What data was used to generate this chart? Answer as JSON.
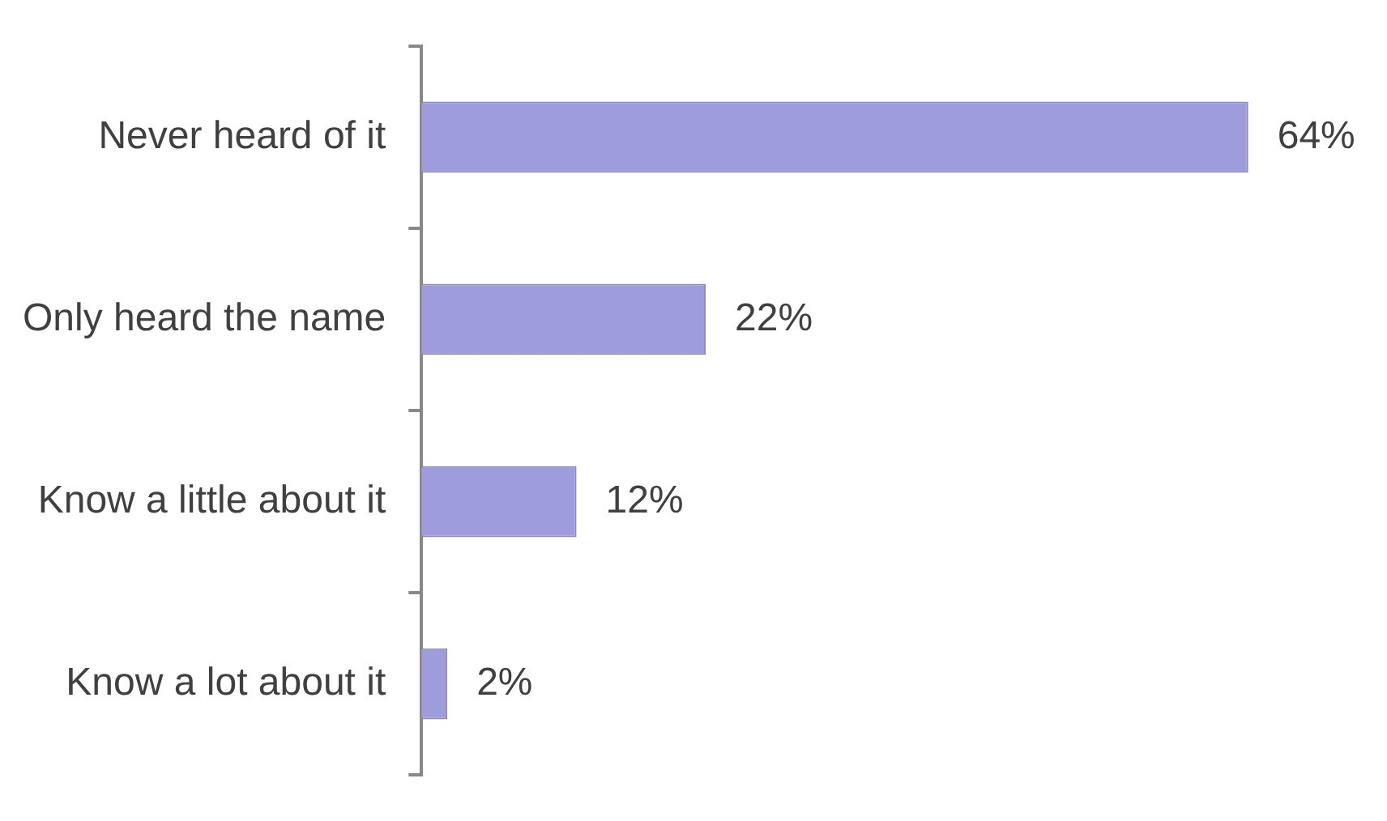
{
  "chart_data": {
    "type": "bar",
    "orientation": "horizontal",
    "categories": [
      "Never heard of it",
      "Only heard the name",
      "Know a little about it",
      "Know a lot about it"
    ],
    "values": [
      64,
      22,
      12,
      2
    ],
    "value_labels": [
      "64%",
      "22%",
      "12%",
      "2%"
    ],
    "color": "#9e9cdb"
  }
}
